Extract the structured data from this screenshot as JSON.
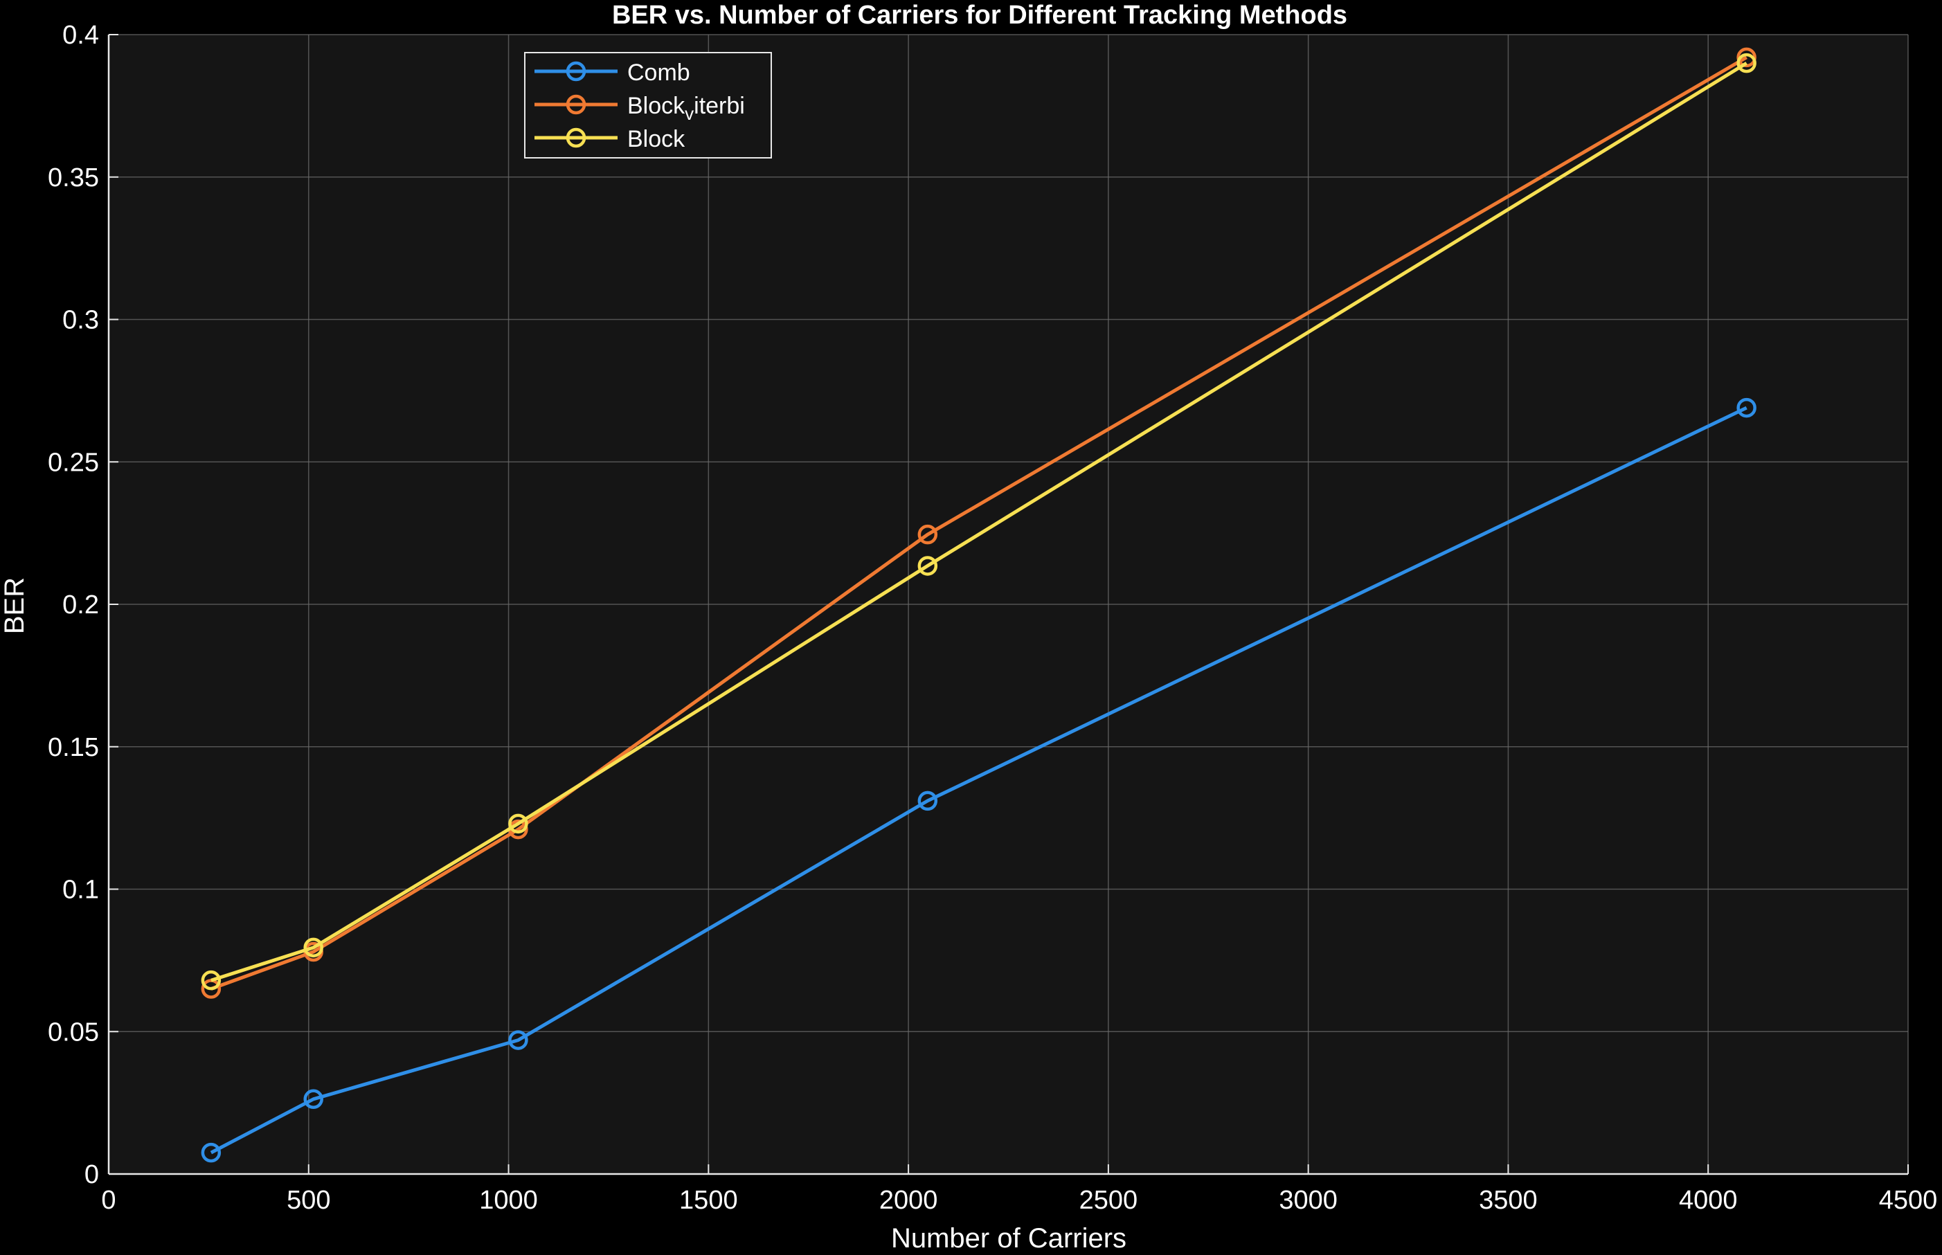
{
  "chart_data": {
    "type": "line",
    "title": "BER vs. Number of Carriers for Different Tracking Methods",
    "xlabel": "Number of Carriers",
    "ylabel": "BER",
    "xlim": [
      0,
      4500
    ],
    "ylim": [
      0,
      0.4
    ],
    "x_ticks": [
      0,
      500,
      1000,
      1500,
      2000,
      2500,
      3000,
      3500,
      4000,
      4500
    ],
    "y_ticks": [
      0,
      0.05,
      0.1,
      0.15,
      0.2,
      0.25,
      0.3,
      0.35,
      0.4
    ],
    "x_tick_labels": [
      "0",
      "500",
      "1000",
      "1500",
      "2000",
      "2500",
      "3000",
      "3500",
      "4000",
      "4500"
    ],
    "y_tick_labels": [
      "0",
      "0.05",
      "0.1",
      "0.15",
      "0.2",
      "0.25",
      "0.3",
      "0.35",
      "0.4"
    ],
    "grid": true,
    "legend_position": "top-left",
    "x": [
      256,
      512,
      1024,
      2048,
      4096
    ],
    "series": [
      {
        "name": "Comb",
        "legend_main": "Comb",
        "legend_sub": "",
        "legend_rest": "",
        "color": "#2f8fe8",
        "values": [
          0.0075,
          0.0263,
          0.047,
          0.131,
          0.269
        ]
      },
      {
        "name": "Block_viterbi",
        "legend_main": "Block",
        "legend_sub": "v",
        "legend_rest": "iterbi",
        "color": "#f07a32",
        "values": [
          0.065,
          0.078,
          0.121,
          0.2245,
          0.392
        ]
      },
      {
        "name": "Block",
        "legend_main": "Block",
        "legend_sub": "",
        "legend_rest": "",
        "color": "#f7e053",
        "values": [
          0.068,
          0.0795,
          0.123,
          0.2135,
          0.39
        ]
      }
    ],
    "colors": {
      "background": "#000000",
      "axes_background": "#151515",
      "grid": "#6a6a6a",
      "axis": "#e8e8e8",
      "text": "#ffffff"
    }
  }
}
